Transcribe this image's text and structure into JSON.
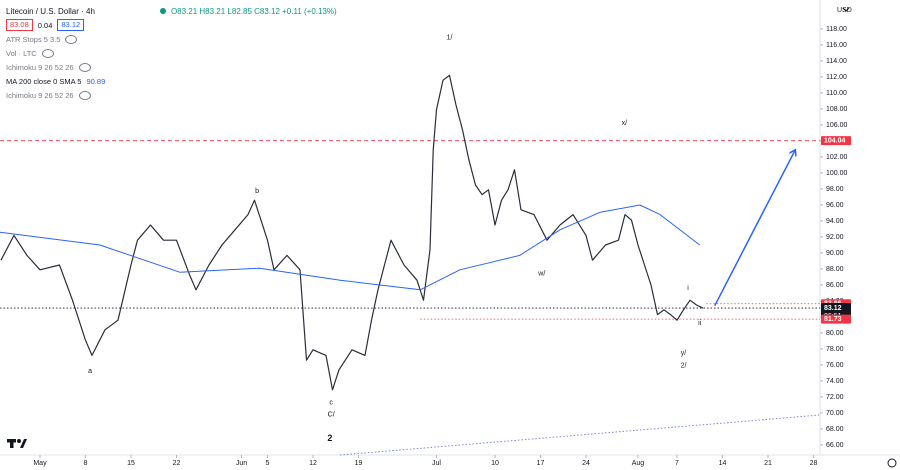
{
  "header": {
    "symbol": "Litecoin / U.S. Dollar · 4h",
    "ohlc": "O83.21 H83.21 L82.85 C83.12 +0.11 (+0.13%)",
    "currency": "USD",
    "boxes": [
      "83.08",
      "0.04",
      "83.12"
    ],
    "indicators": [
      "ATR Stops 5 3.5",
      "Vol · LTC",
      "Ichimoku 9 26 52 26",
      "MA 200 close 0 SMA 5",
      "Ichimoku 9 26 52 26"
    ],
    "ma_value": "90.89"
  },
  "chart_data": {
    "type": "line",
    "xlim": [
      -6.15,
      120
    ],
    "ylim": [
      64.75,
      121.625
    ],
    "xticks": [
      {
        "value": 0,
        "label": "May"
      },
      {
        "value": 7,
        "label": "8"
      },
      {
        "value": 14,
        "label": "15"
      },
      {
        "value": 21,
        "label": "22"
      },
      {
        "value": 31,
        "label": "Jun"
      },
      {
        "value": 35,
        "label": "5"
      },
      {
        "value": 42,
        "label": "12"
      },
      {
        "value": 49,
        "label": "19"
      },
      {
        "value": 61,
        "label": "Jul"
      },
      {
        "value": 70,
        "label": "10"
      },
      {
        "value": 77,
        "label": "17"
      },
      {
        "value": 84,
        "label": "24"
      },
      {
        "value": 92,
        "label": "Aug"
      },
      {
        "value": 98,
        "label": "7"
      },
      {
        "value": 105,
        "label": "14"
      },
      {
        "value": 112,
        "label": "21"
      },
      {
        "value": 119,
        "label": "28"
      }
    ],
    "yticks": [
      {
        "value": 66,
        "label": "66.00"
      },
      {
        "value": 68,
        "label": "68.00"
      },
      {
        "value": 70,
        "label": "70.00"
      },
      {
        "value": 72,
        "label": "72.00"
      },
      {
        "value": 74,
        "label": "74.00"
      },
      {
        "value": 76,
        "label": "76.00"
      },
      {
        "value": 78,
        "label": "78.00"
      },
      {
        "value": 80,
        "label": "80.00"
      },
      {
        "value": 82,
        "label": "82.00"
      },
      {
        "value": 84,
        "label": "84.00"
      },
      {
        "value": 86,
        "label": "86.00"
      },
      {
        "value": 88,
        "label": "88.00"
      },
      {
        "value": 90,
        "label": "90.00"
      },
      {
        "value": 92,
        "label": "92.00"
      },
      {
        "value": 94,
        "label": "94.00"
      },
      {
        "value": 96,
        "label": "96.00"
      },
      {
        "value": 98,
        "label": "98.00"
      },
      {
        "value": 100,
        "label": "100.00"
      },
      {
        "value": 102,
        "label": "102.00"
      },
      {
        "value": 104,
        "label": "104.00"
      },
      {
        "value": 106,
        "label": "106.00"
      },
      {
        "value": 108,
        "label": "108.00"
      },
      {
        "value": 110,
        "label": "110.00"
      },
      {
        "value": 112,
        "label": "112.00"
      },
      {
        "value": 114,
        "label": "114.00"
      },
      {
        "value": 116,
        "label": "116.00"
      },
      {
        "value": 118,
        "label": "118.00"
      }
    ],
    "series": [
      {
        "color": "#2a2e39",
        "x": [
          -6,
          -4,
          -2,
          0,
          3,
          5,
          7,
          8,
          10,
          12,
          14,
          15,
          17,
          19,
          21,
          23,
          24,
          26,
          28,
          30,
          32,
          33,
          35,
          36,
          38,
          40,
          41,
          42,
          44,
          45,
          46,
          48,
          50,
          51,
          52,
          54,
          56,
          58,
          59,
          60,
          60.5,
          61,
          62,
          63,
          64,
          65,
          66,
          67,
          68,
          69,
          70,
          71,
          72,
          73,
          74,
          76,
          78,
          80,
          82,
          84,
          85,
          87,
          89,
          90,
          91,
          92,
          93,
          94,
          95,
          96,
          97,
          98,
          99,
          100,
          101,
          102
        ],
        "values": [
          89.1,
          92.2,
          89.7,
          87.9,
          88.5,
          84.1,
          79.1,
          77.2,
          80.4,
          81.6,
          88.5,
          91.6,
          93.5,
          91.6,
          91.6,
          87.3,
          85.4,
          88.5,
          91,
          92.9,
          94.8,
          96.6,
          91.6,
          87.9,
          89.7,
          87.9,
          76.6,
          77.9,
          77.2,
          72.9,
          75.4,
          77.9,
          77.2,
          81.6,
          85.4,
          91.6,
          88.5,
          86.6,
          84.1,
          90.4,
          102.9,
          107.9,
          111.6,
          112.2,
          108.5,
          105.4,
          101.6,
          98.5,
          97.3,
          97.9,
          93.5,
          96.6,
          97.9,
          100.4,
          95.4,
          94.8,
          91.6,
          93.5,
          94.8,
          92.2,
          89.1,
          91,
          91.6,
          94.8,
          94.1,
          91,
          88.5,
          86,
          82.3,
          82.9,
          82.3,
          81.6,
          82.9,
          84.1,
          83.5,
          83.12
        ]
      },
      {
        "color": "#2962ff",
        "x": [
          -6.2,
          9.2,
          21.5,
          33.8,
          46.2,
          58.5,
          64.6,
          73.8,
          80,
          86.2,
          92.3,
          95.4,
          101.5
        ],
        "values": [
          92.6,
          91,
          87.6,
          88.1,
          86.6,
          85.4,
          87.9,
          89.7,
          92.9,
          95.1,
          96,
          94.8,
          91
        ]
      }
    ],
    "hlines": [
      {
        "value": 104.04,
        "color": "#f23645",
        "style": "dashed",
        "x_start": -6.15
      },
      {
        "value": 83.66,
        "color": "#f23645",
        "style": "dotted",
        "x_start": 102.5
      },
      {
        "value": 83.12,
        "color": "#131722",
        "style": "dotted",
        "x_start": -6.15
      },
      {
        "value": 81.73,
        "color": "#f23645",
        "style": "dotted",
        "x_start": 58.5
      }
    ],
    "countdown": "06:51",
    "trendlines": [
      {
        "x": [
          103.8,
          116.2
        ],
        "values": [
          83.4,
          102.9
        ],
        "color": "#2962ff",
        "style": "solid",
        "arrow": true
      },
      {
        "x": [
          46.15,
          120
        ],
        "values": [
          64.75,
          69.75
        ],
        "color": "#7b86d6",
        "style": "dotted",
        "arrow": false
      }
    ],
    "annotations": [
      {
        "text": "1/",
        "x": 63,
        "y": 116.9
      },
      {
        "text": "b",
        "x": 33.4,
        "y": 97.7
      },
      {
        "text": "a",
        "x": 7.7,
        "y": 75.2
      },
      {
        "text": "c",
        "x": 44.8,
        "y": 71.3
      },
      {
        "text": "C/",
        "x": 44.8,
        "y": 69.8
      },
      {
        "text": "2",
        "x": 44.6,
        "y": 66.8
      },
      {
        "text": "x/",
        "x": 89.9,
        "y": 106.2
      },
      {
        "text": "w/",
        "x": 77.2,
        "y": 87.4
      },
      {
        "text": "i",
        "x": 99.7,
        "y": 85.6
      },
      {
        "text": "ii",
        "x": 101.5,
        "y": 81.2
      },
      {
        "text": "y/",
        "x": 99,
        "y": 77.5
      },
      {
        "text": "2/",
        "x": 99,
        "y": 75.9
      }
    ]
  }
}
